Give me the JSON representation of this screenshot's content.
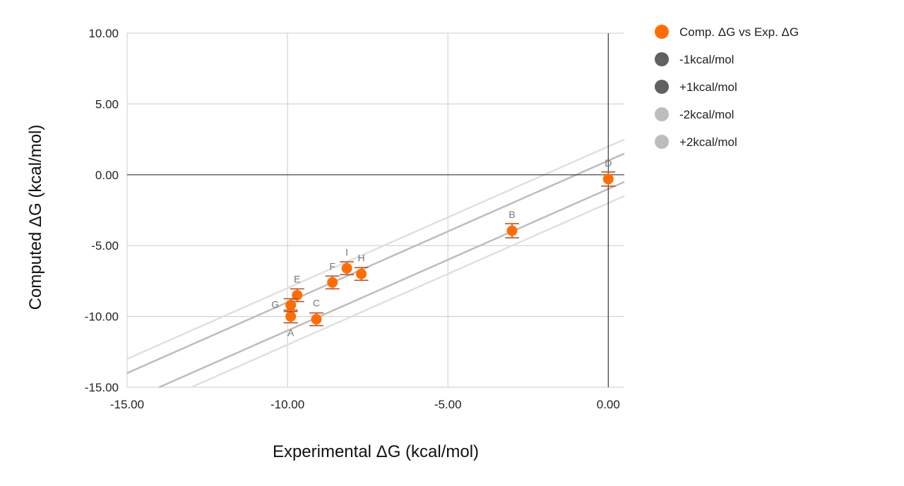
{
  "chart_data": {
    "type": "scatter",
    "xlabel": "Experimental ΔG (kcal/mol)",
    "ylabel": "Computed ΔG (kcal/mol)",
    "xlim": [
      -15,
      0.5
    ],
    "ylim": [
      -15,
      10
    ],
    "x_ticks": [
      -15,
      -10,
      -5,
      0
    ],
    "x_tick_labels": [
      "-15.00",
      "-10.00",
      "-5.00",
      "0.00"
    ],
    "y_ticks": [
      -15,
      -10,
      -5,
      0,
      5,
      10
    ],
    "y_tick_labels": [
      "-15.00",
      "-10.00",
      "-5.00",
      "0.00",
      "5.00",
      "10.00"
    ],
    "grid": true,
    "legend_position": "right",
    "points": [
      {
        "label": "A",
        "x": -9.9,
        "y": -10.0,
        "err": 0.45
      },
      {
        "label": "B",
        "x": -3.0,
        "y": -3.95,
        "err": 0.5
      },
      {
        "label": "C",
        "x": -9.1,
        "y": -10.2,
        "err": 0.45
      },
      {
        "label": "D",
        "x": 0.0,
        "y": -0.3,
        "err": 0.5
      },
      {
        "label": "E",
        "x": -9.7,
        "y": -8.5,
        "err": 0.45
      },
      {
        "label": "F",
        "x": -8.6,
        "y": -7.6,
        "err": 0.45
      },
      {
        "label": "G",
        "x": -9.9,
        "y": -9.2,
        "err": 0.45
      },
      {
        "label": "H",
        "x": -7.7,
        "y": -7.0,
        "err": 0.45
      },
      {
        "label": "I",
        "x": -8.15,
        "y": -6.6,
        "err": 0.45
      }
    ],
    "series": [
      {
        "name": "Comp. ΔG vs Exp. ΔG",
        "kind": "points",
        "color": "#ff6d00"
      },
      {
        "name": "-1kcal/mol",
        "kind": "line",
        "offset": -1,
        "color": "#616161",
        "line_color": "#bdbdbd"
      },
      {
        "name": "+1kcal/mol",
        "kind": "line",
        "offset": 1,
        "color": "#616161",
        "line_color": "#bdbdbd"
      },
      {
        "name": "-2kcal/mol",
        "kind": "line",
        "offset": -2,
        "color": "#bdbdbd",
        "line_color": "#e0e0e0"
      },
      {
        "name": "+2kcal/mol",
        "kind": "line",
        "offset": 2,
        "color": "#bdbdbd",
        "line_color": "#e0e0e0"
      }
    ],
    "colors": {
      "point": "#ff6d00",
      "error_bar": "#b5471b",
      "grid": "#cccccc",
      "zero_axis": "#333333"
    }
  }
}
